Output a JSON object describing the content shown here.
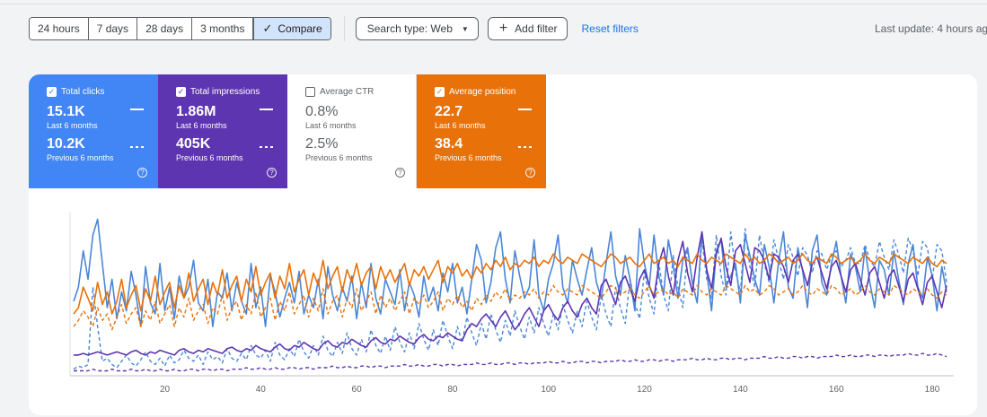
{
  "toolbar": {
    "ranges": [
      "24 hours",
      "7 days",
      "28 days",
      "3 months"
    ],
    "compare_label": "Compare",
    "search_type": "Search type: Web",
    "add_filter": "Add filter",
    "reset_filters": "Reset filters",
    "last_update": "Last update: 4 hours ag"
  },
  "cards": {
    "clicks": {
      "title": "Total clicks",
      "value": "15.1K",
      "value_period": "Last 6 months",
      "prev": "10.2K",
      "prev_period": "Previous 6 months",
      "color": "#4285f4"
    },
    "impressions": {
      "title": "Total impressions",
      "value": "1.86M",
      "value_period": "Last 6 months",
      "prev": "405K",
      "prev_period": "Previous 6 months",
      "color": "#5e35b1"
    },
    "ctr": {
      "title": "Average CTR",
      "value": "0.8%",
      "value_period": "Last 6 months",
      "prev": "2.5%",
      "prev_period": "Previous 6 months"
    },
    "position": {
      "title": "Average position",
      "value": "22.7",
      "value_period": "Last 6 months",
      "prev": "38.4",
      "prev_period": "Previous 6 months",
      "color": "#e8710a"
    }
  },
  "chart_data": {
    "type": "line",
    "x_ticks": [
      20,
      40,
      60,
      80,
      100,
      120,
      140,
      160,
      180
    ],
    "xlim": [
      1,
      183
    ],
    "ylim": [
      0,
      100
    ],
    "grid": false,
    "series": [
      {
        "key": "clicks",
        "style": "solid",
        "color": "#4a86d6",
        "values": [
          46,
          55,
          78,
          60,
          88,
          98,
          70,
          42,
          60,
          35,
          52,
          40,
          65,
          50,
          30,
          68,
          45,
          38,
          70,
          40,
          55,
          35,
          62,
          48,
          55,
          72,
          45,
          40,
          60,
          30,
          52,
          48,
          64,
          40,
          58,
          46,
          38,
          70,
          42,
          55,
          30,
          62,
          52,
          36,
          48,
          58,
          45,
          65,
          38,
          50,
          42,
          60,
          35,
          68,
          50,
          40,
          55,
          46,
          62,
          35,
          58,
          42,
          70,
          48,
          38,
          60,
          52,
          44,
          66,
          40,
          58,
          50,
          36,
          62,
          46,
          55,
          40,
          64,
          52,
          70,
          45,
          55,
          38,
          60,
          82,
          72,
          45,
          58,
          80,
          90,
          60,
          45,
          78,
          62,
          48,
          55,
          85,
          50,
          40,
          60,
          70,
          88,
          55,
          45,
          72,
          60,
          50,
          66,
          80,
          58,
          48,
          70,
          90,
          62,
          50,
          75,
          60,
          40,
          92,
          70,
          55,
          88,
          62,
          50,
          85,
          68,
          48,
          72,
          80,
          58,
          45,
          90,
          65,
          40,
          78,
          85,
          55,
          62,
          70,
          45,
          88,
          75,
          60,
          50,
          82,
          68,
          45,
          72,
          90,
          55,
          48,
          80,
          65,
          42,
          78,
          88,
          58,
          50,
          70,
          84,
          62,
          45,
          76,
          68,
          52,
          80,
          58,
          42,
          72,
          66,
          50,
          78,
          60,
          44,
          70,
          82,
          55,
          48,
          74,
          62,
          40,
          68,
          52
        ]
      },
      {
        "key": "clicks_prev",
        "style": "dashed",
        "color": "#4a86d6",
        "values": [
          3,
          5,
          4,
          6,
          55,
          30,
          8,
          10,
          6,
          4,
          8,
          12,
          7,
          5,
          9,
          14,
          8,
          6,
          10,
          5,
          12,
          7,
          9,
          15,
          10,
          8,
          12,
          6,
          14,
          9,
          11,
          7,
          16,
          10,
          8,
          13,
          9,
          18,
          12,
          10,
          15,
          8,
          20,
          12,
          9,
          16,
          11,
          22,
          14,
          10,
          18,
          12,
          24,
          15,
          11,
          20,
          13,
          26,
          16,
          12,
          22,
          14,
          28,
          18,
          13,
          24,
          15,
          30,
          20,
          14,
          26,
          16,
          32,
          22,
          15,
          28,
          18,
          34,
          24,
          16,
          30,
          20,
          36,
          26,
          18,
          32,
          22,
          38,
          28,
          20,
          34,
          24,
          40,
          30,
          22,
          36,
          26,
          42,
          32,
          24,
          38,
          28,
          44,
          34,
          26,
          40,
          30,
          46,
          36,
          28,
          50,
          38,
          30,
          55,
          42,
          32,
          60,
          45,
          35,
          65,
          48,
          38,
          70,
          50,
          40,
          75,
          55,
          42,
          80,
          58,
          45,
          85,
          60,
          48,
          88,
          62,
          50,
          90,
          65,
          52,
          92,
          68,
          55,
          88,
          70,
          58,
          85,
          72,
          60,
          82,
          74,
          62,
          80,
          75,
          64,
          78,
          76,
          66,
          75,
          78,
          68,
          72,
          80,
          70,
          70,
          82,
          72,
          68,
          84,
          74,
          66,
          85,
          76,
          64,
          86,
          78,
          62,
          84,
          80,
          60,
          82,
          78,
          58
        ]
      },
      {
        "key": "impressions",
        "style": "solid",
        "color": "#5e35b1",
        "values": [
          12,
          12,
          13,
          12,
          13,
          14,
          13,
          12,
          13,
          14,
          13,
          12,
          14,
          15,
          13,
          12,
          14,
          13,
          15,
          14,
          13,
          12,
          15,
          16,
          14,
          13,
          15,
          14,
          16,
          15,
          14,
          13,
          16,
          17,
          15,
          14,
          16,
          15,
          18,
          16,
          15,
          14,
          17,
          19,
          16,
          15,
          18,
          17,
          20,
          18,
          16,
          15,
          19,
          21,
          18,
          17,
          20,
          19,
          22,
          20,
          18,
          17,
          21,
          23,
          20,
          19,
          22,
          21,
          24,
          22,
          20,
          19,
          23,
          25,
          22,
          21,
          24,
          23,
          26,
          24,
          22,
          21,
          28,
          32,
          30,
          35,
          38,
          34,
          30,
          36,
          40,
          34,
          28,
          32,
          38,
          42,
          36,
          30,
          40,
          44,
          38,
          34,
          42,
          46,
          40,
          36,
          44,
          48,
          42,
          38,
          56,
          60,
          52,
          44,
          58,
          62,
          54,
          46,
          60,
          66,
          56,
          48,
          70,
          80,
          62,
          50,
          72,
          84,
          64,
          52,
          74,
          90,
          66,
          54,
          76,
          86,
          68,
          56,
          78,
          82,
          70,
          58,
          80,
          78,
          72,
          60,
          76,
          74,
          68,
          58,
          72,
          76,
          66,
          56,
          70,
          74,
          64,
          54,
          68,
          72,
          62,
          52,
          66,
          70,
          60,
          50,
          64,
          68,
          58,
          48,
          62,
          66,
          56,
          46,
          60,
          64,
          54,
          44,
          58,
          62,
          52,
          42,
          56
        ]
      },
      {
        "key": "impressions_prev",
        "style": "dashed",
        "color": "#5e35b1",
        "values": [
          2,
          2,
          2,
          2,
          3,
          2,
          2,
          2,
          3,
          2,
          2,
          2,
          3,
          2,
          2,
          3,
          2,
          2,
          3,
          2,
          2,
          3,
          2,
          2,
          3,
          3,
          2,
          3,
          3,
          2,
          3,
          3,
          2,
          3,
          3,
          3,
          4,
          3,
          3,
          4,
          3,
          3,
          4,
          3,
          3,
          4,
          4,
          3,
          4,
          4,
          3,
          4,
          4,
          4,
          5,
          4,
          4,
          5,
          4,
          4,
          5,
          5,
          4,
          5,
          5,
          4,
          5,
          5,
          5,
          6,
          5,
          5,
          6,
          5,
          5,
          6,
          6,
          5,
          6,
          6,
          5,
          6,
          6,
          6,
          7,
          6,
          6,
          7,
          6,
          6,
          7,
          7,
          6,
          7,
          7,
          6,
          7,
          7,
          7,
          8,
          7,
          7,
          8,
          7,
          7,
          8,
          8,
          7,
          8,
          8,
          7,
          8,
          8,
          8,
          9,
          8,
          8,
          9,
          8,
          8,
          9,
          9,
          8,
          9,
          9,
          8,
          9,
          9,
          9,
          10,
          9,
          9,
          10,
          9,
          9,
          10,
          10,
          9,
          10,
          10,
          9,
          10,
          10,
          10,
          11,
          10,
          10,
          11,
          10,
          10,
          11,
          11,
          10,
          11,
          11,
          10,
          11,
          11,
          11,
          12,
          11,
          11,
          12,
          11,
          11,
          12,
          12,
          11,
          12,
          12,
          11,
          12,
          12,
          12,
          13,
          12,
          12,
          13,
          12,
          12,
          13,
          12,
          11
        ]
      },
      {
        "key": "position",
        "style": "solid",
        "color": "#e8710a",
        "values": [
          38,
          42,
          55,
          48,
          40,
          58,
          44,
          52,
          38,
          46,
          60,
          42,
          50,
          56,
          40,
          54,
          46,
          62,
          44,
          52,
          58,
          42,
          56,
          48,
          64,
          46,
          54,
          60,
          44,
          58,
          50,
          66,
          48,
          56,
          62,
          46,
          60,
          52,
          68,
          50,
          58,
          64,
          48,
          62,
          54,
          70,
          52,
          60,
          66,
          50,
          64,
          56,
          72,
          54,
          62,
          68,
          52,
          66,
          58,
          70,
          56,
          64,
          68,
          54,
          68,
          60,
          66,
          58,
          64,
          70,
          56,
          66,
          62,
          68,
          60,
          66,
          72,
          58,
          68,
          64,
          70,
          62,
          66,
          60,
          68,
          64,
          70,
          66,
          72,
          68,
          74,
          66,
          70,
          68,
          72,
          70,
          74,
          68,
          72,
          70,
          76,
          72,
          70,
          74,
          72,
          70,
          76,
          74,
          72,
          70,
          68,
          72,
          76,
          74,
          70,
          72,
          74,
          70,
          68,
          72,
          76,
          70,
          72,
          74,
          70,
          72,
          68,
          74,
          72,
          70,
          76,
          72,
          70,
          74,
          72,
          70,
          76,
          74,
          72,
          70,
          76,
          72,
          74,
          70,
          72,
          76,
          74,
          70,
          72,
          74,
          70,
          72,
          76,
          72,
          70,
          74,
          72,
          70,
          76,
          74,
          70,
          72,
          74,
          70,
          72,
          76,
          72,
          70,
          74,
          72,
          70,
          76,
          74,
          72,
          70,
          74,
          72,
          70,
          74,
          70,
          68,
          72,
          70
        ]
      },
      {
        "key": "position_prev",
        "style": "dashed",
        "color": "#e8710a",
        "values": [
          30,
          34,
          40,
          36,
          30,
          42,
          34,
          38,
          28,
          36,
          44,
          32,
          38,
          42,
          30,
          40,
          34,
          46,
          32,
          38,
          44,
          30,
          42,
          36,
          48,
          34,
          40,
          44,
          32,
          42,
          38,
          50,
          34,
          42,
          46,
          34,
          44,
          38,
          52,
          36,
          42,
          48,
          34,
          46,
          40,
          52,
          38,
          44,
          50,
          36,
          48,
          40,
          54,
          38,
          46,
          50,
          36,
          48,
          42,
          54,
          40,
          46,
          52,
          38,
          50,
          42,
          48,
          40,
          46,
          52,
          38,
          48,
          44,
          50,
          42,
          46,
          52,
          40,
          48,
          44,
          50,
          42,
          46,
          40,
          48,
          44,
          50,
          46,
          52,
          48,
          54,
          46,
          50,
          48,
          52,
          50,
          54,
          48,
          52,
          50,
          56,
          52,
          50,
          54,
          52,
          50,
          56,
          54,
          52,
          50,
          48,
          52,
          56,
          54,
          50,
          52,
          54,
          50,
          48,
          52,
          56,
          50,
          52,
          54,
          50,
          52,
          48,
          54,
          52,
          50,
          56,
          52,
          50,
          54,
          52,
          50,
          56,
          54,
          52,
          50,
          56,
          52,
          54,
          50,
          52,
          56,
          54,
          50,
          52,
          54,
          50,
          52,
          56,
          52,
          50,
          54,
          52,
          50,
          56,
          54,
          50,
          52,
          54,
          50,
          52,
          56,
          52,
          50,
          54,
          52,
          50,
          56,
          54,
          52,
          50,
          54,
          52,
          50,
          54,
          50,
          48,
          52,
          50
        ]
      }
    ]
  }
}
